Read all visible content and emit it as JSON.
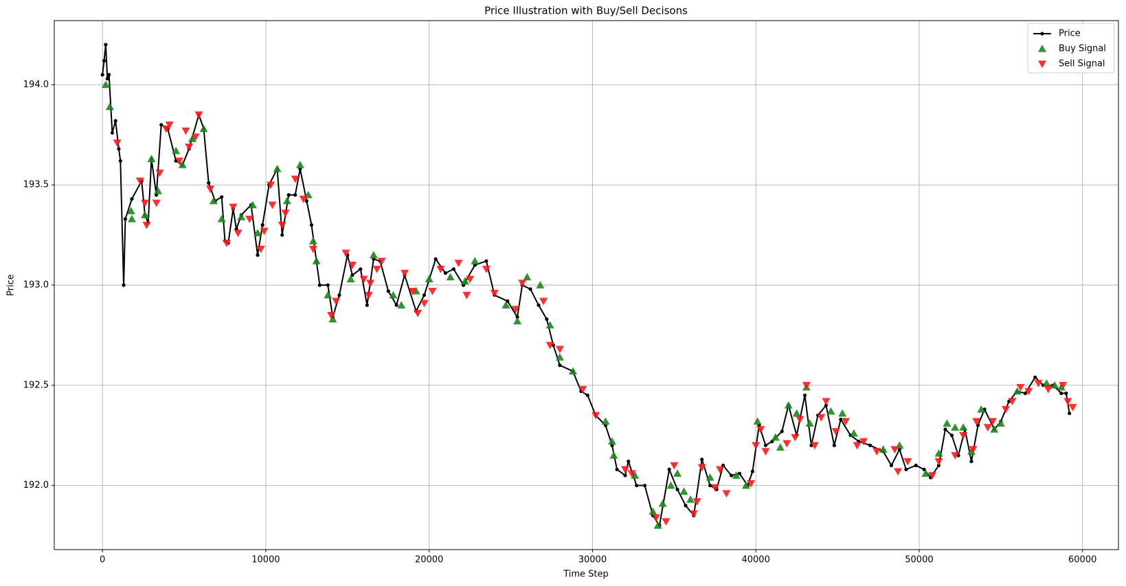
{
  "chart_data": {
    "type": "line",
    "title": "Price Illustration with Buy/Sell Decisons",
    "xlabel": "Time Step",
    "ylabel": "Price",
    "xlim": [
      -2950,
      62200
    ],
    "ylim": [
      191.68,
      194.32
    ],
    "xticks": [
      0,
      10000,
      20000,
      30000,
      40000,
      50000,
      60000
    ],
    "yticks": [
      {
        "value": 192,
        "label": "192.0"
      },
      192.5,
      {
        "value": 193,
        "label": "193.0"
      },
      193.5,
      {
        "value": 194,
        "label": "194.0"
      }
    ],
    "grid": true,
    "legend": "upper right",
    "series": [
      {
        "name": "Price",
        "type": "line",
        "color": "#000000",
        "x": [
          0,
          100,
          200,
          300,
          400,
          600,
          800,
          1000,
          1100,
          1300,
          1400,
          1800,
          2400,
          2600,
          2800,
          3000,
          3300,
          3600,
          4000,
          4500,
          4900,
          5300,
          5900,
          6200,
          6500,
          6900,
          7300,
          7500,
          7700,
          8000,
          8200,
          8500,
          9100,
          9500,
          9800,
          10200,
          10700,
          11000,
          11400,
          11800,
          12100,
          12500,
          12800,
          13100,
          13300,
          13800,
          14100,
          14500,
          15000,
          15300,
          15800,
          16200,
          16600,
          17000,
          17500,
          18000,
          18500,
          19200,
          19700,
          20400,
          21000,
          21500,
          22100,
          22800,
          23500,
          24000,
          24800,
          25400,
          25700,
          26200,
          26700,
          27200,
          27600,
          28000,
          28800,
          29300,
          29700,
          30200,
          30800,
          31200,
          31500,
          32000,
          32200,
          32700,
          33200,
          33700,
          34100,
          34700,
          35200,
          35700,
          36200,
          36700,
          37200,
          37600,
          38000,
          38500,
          39000,
          39500,
          39800,
          40200,
          40600,
          41000,
          41600,
          42000,
          42500,
          43000,
          43400,
          43800,
          44300,
          44800,
          45200,
          45800,
          46300,
          47000,
          47800,
          48300,
          48800,
          49200,
          49800,
          50300,
          50700,
          51200,
          51600,
          52000,
          52400,
          52800,
          53200,
          53600,
          54000,
          54600,
          55000,
          55500,
          56000,
          56500,
          57100,
          57600,
          58200,
          58700,
          59000,
          59200
        ],
        "values": [
          194.05,
          194.12,
          194.2,
          194.03,
          194.05,
          193.76,
          193.82,
          193.68,
          193.62,
          193.0,
          193.33,
          193.43,
          193.52,
          193.35,
          193.31,
          193.63,
          193.45,
          193.8,
          193.78,
          193.62,
          193.6,
          193.68,
          193.85,
          193.78,
          193.51,
          193.42,
          193.44,
          193.22,
          193.21,
          193.38,
          193.28,
          193.35,
          193.4,
          193.15,
          193.3,
          193.5,
          193.58,
          193.25,
          193.45,
          193.45,
          193.58,
          193.42,
          193.3,
          193.12,
          193.0,
          193.0,
          192.84,
          192.95,
          193.15,
          193.05,
          193.08,
          192.9,
          193.13,
          193.12,
          192.97,
          192.9,
          193.05,
          192.87,
          192.95,
          193.13,
          193.06,
          193.08,
          193.0,
          193.1,
          193.12,
          192.95,
          192.92,
          192.84,
          193.0,
          192.98,
          192.9,
          192.83,
          192.7,
          192.6,
          192.57,
          192.47,
          192.45,
          192.35,
          192.3,
          192.2,
          192.08,
          192.05,
          192.12,
          192.0,
          192.0,
          191.85,
          191.8,
          192.08,
          191.98,
          191.9,
          191.85,
          192.13,
          192.0,
          191.98,
          192.1,
          192.05,
          192.06,
          192.0,
          192.07,
          192.3,
          192.2,
          192.22,
          192.27,
          192.4,
          192.25,
          192.45,
          192.2,
          192.35,
          192.4,
          192.2,
          192.33,
          192.25,
          192.22,
          192.2,
          192.17,
          192.1,
          192.18,
          192.08,
          192.1,
          192.08,
          192.04,
          192.1,
          192.28,
          192.25,
          192.15,
          192.28,
          192.12,
          192.3,
          192.38,
          192.28,
          192.32,
          192.42,
          192.47,
          192.46,
          192.54,
          192.5,
          192.5,
          192.46,
          192.46,
          192.36
        ]
      },
      {
        "name": "Buy Signal",
        "type": "scatter",
        "marker": "triangle-up",
        "color": "#1a8a1a",
        "x": [
          200,
          450,
          1750,
          1800,
          2600,
          3000,
          3400,
          4500,
          4900,
          5500,
          6200,
          6800,
          7300,
          8500,
          9200,
          9500,
          10700,
          11300,
          12100,
          12600,
          12900,
          13100,
          13800,
          14100,
          15200,
          16600,
          17800,
          18300,
          19200,
          20000,
          21300,
          22200,
          22800,
          24700,
          25400,
          26000,
          26800,
          27400,
          28000,
          28800,
          30800,
          31200,
          31300,
          32600,
          33700,
          34000,
          34300,
          34800,
          35200,
          35600,
          36000,
          37200,
          38800,
          39400,
          40100,
          41200,
          41500,
          42000,
          42500,
          43100,
          43300,
          44600,
          45300,
          46000,
          47800,
          48800,
          50400,
          51200,
          51700,
          52200,
          52700,
          53200,
          53800,
          54600,
          55000,
          56000,
          57800,
          58300,
          58700
        ],
        "values": [
          194.0,
          193.89,
          193.37,
          193.33,
          193.35,
          193.63,
          193.47,
          193.67,
          193.6,
          193.73,
          193.78,
          193.42,
          193.33,
          193.34,
          193.4,
          193.26,
          193.58,
          193.42,
          193.6,
          193.45,
          193.22,
          193.12,
          192.95,
          192.83,
          193.03,
          193.15,
          192.95,
          192.9,
          192.97,
          193.03,
          193.04,
          193.02,
          193.12,
          192.9,
          192.82,
          193.04,
          193.0,
          192.8,
          192.64,
          192.57,
          192.32,
          192.22,
          192.15,
          192.05,
          191.87,
          191.8,
          191.91,
          192.0,
          192.06,
          191.97,
          191.93,
          192.04,
          192.05,
          192.0,
          192.32,
          192.24,
          192.19,
          192.4,
          192.36,
          192.49,
          192.31,
          192.37,
          192.36,
          192.26,
          192.18,
          192.2,
          192.06,
          192.16,
          192.31,
          192.29,
          192.29,
          192.17,
          192.38,
          192.28,
          192.31,
          192.47,
          192.51,
          192.5,
          192.49
        ]
      },
      {
        "name": "Sell Signal",
        "type": "scatter",
        "marker": "triangle-down",
        "color": "#ff1a1a",
        "x": [
          900,
          2300,
          2600,
          2700,
          3300,
          3500,
          3900,
          4100,
          4700,
          5100,
          5300,
          5700,
          5900,
          6600,
          7600,
          8000,
          8300,
          9000,
          9700,
          9900,
          10300,
          10400,
          11000,
          11200,
          11800,
          12300,
          12900,
          14000,
          14300,
          14900,
          15300,
          16000,
          16300,
          16400,
          16800,
          17100,
          18500,
          19000,
          19300,
          19700,
          20200,
          20700,
          21800,
          22300,
          22500,
          23500,
          24000,
          25300,
          25700,
          27000,
          27400,
          28000,
          29400,
          30200,
          32000,
          32400,
          33900,
          34500,
          35000,
          36200,
          36400,
          36700,
          37500,
          37800,
          38200,
          39700,
          40000,
          40300,
          40600,
          41900,
          42400,
          42700,
          43100,
          43600,
          44000,
          44300,
          44900,
          45500,
          46200,
          46600,
          47400,
          48500,
          48700,
          49300,
          50800,
          51200,
          52200,
          52700,
          53300,
          53500,
          54200,
          54500,
          55300,
          55700,
          56200,
          56700,
          57300,
          57900,
          58800,
          59100,
          59400
        ],
        "values": [
          193.71,
          193.52,
          193.41,
          193.3,
          193.41,
          193.56,
          193.78,
          193.8,
          193.62,
          193.77,
          193.69,
          193.74,
          193.85,
          193.48,
          193.21,
          193.39,
          193.26,
          193.33,
          193.18,
          193.27,
          193.5,
          193.4,
          193.3,
          193.36,
          193.53,
          193.43,
          193.18,
          192.85,
          192.92,
          193.16,
          193.1,
          193.03,
          192.95,
          193.01,
          193.08,
          193.12,
          193.06,
          192.97,
          192.86,
          192.91,
          192.97,
          193.08,
          193.11,
          192.95,
          193.03,
          193.08,
          192.96,
          192.88,
          193.01,
          192.92,
          192.7,
          192.68,
          192.48,
          192.35,
          192.08,
          192.06,
          191.84,
          191.82,
          192.1,
          191.86,
          191.92,
          192.09,
          191.99,
          192.08,
          191.96,
          192.01,
          192.2,
          192.28,
          192.17,
          192.21,
          192.24,
          192.33,
          192.5,
          192.2,
          192.34,
          192.42,
          192.27,
          192.32,
          192.2,
          192.22,
          192.17,
          192.18,
          192.07,
          192.12,
          192.05,
          192.12,
          192.15,
          192.25,
          192.18,
          192.32,
          192.29,
          192.32,
          192.38,
          192.42,
          192.49,
          192.47,
          192.51,
          192.48,
          192.5,
          192.42,
          192.39
        ]
      }
    ]
  }
}
